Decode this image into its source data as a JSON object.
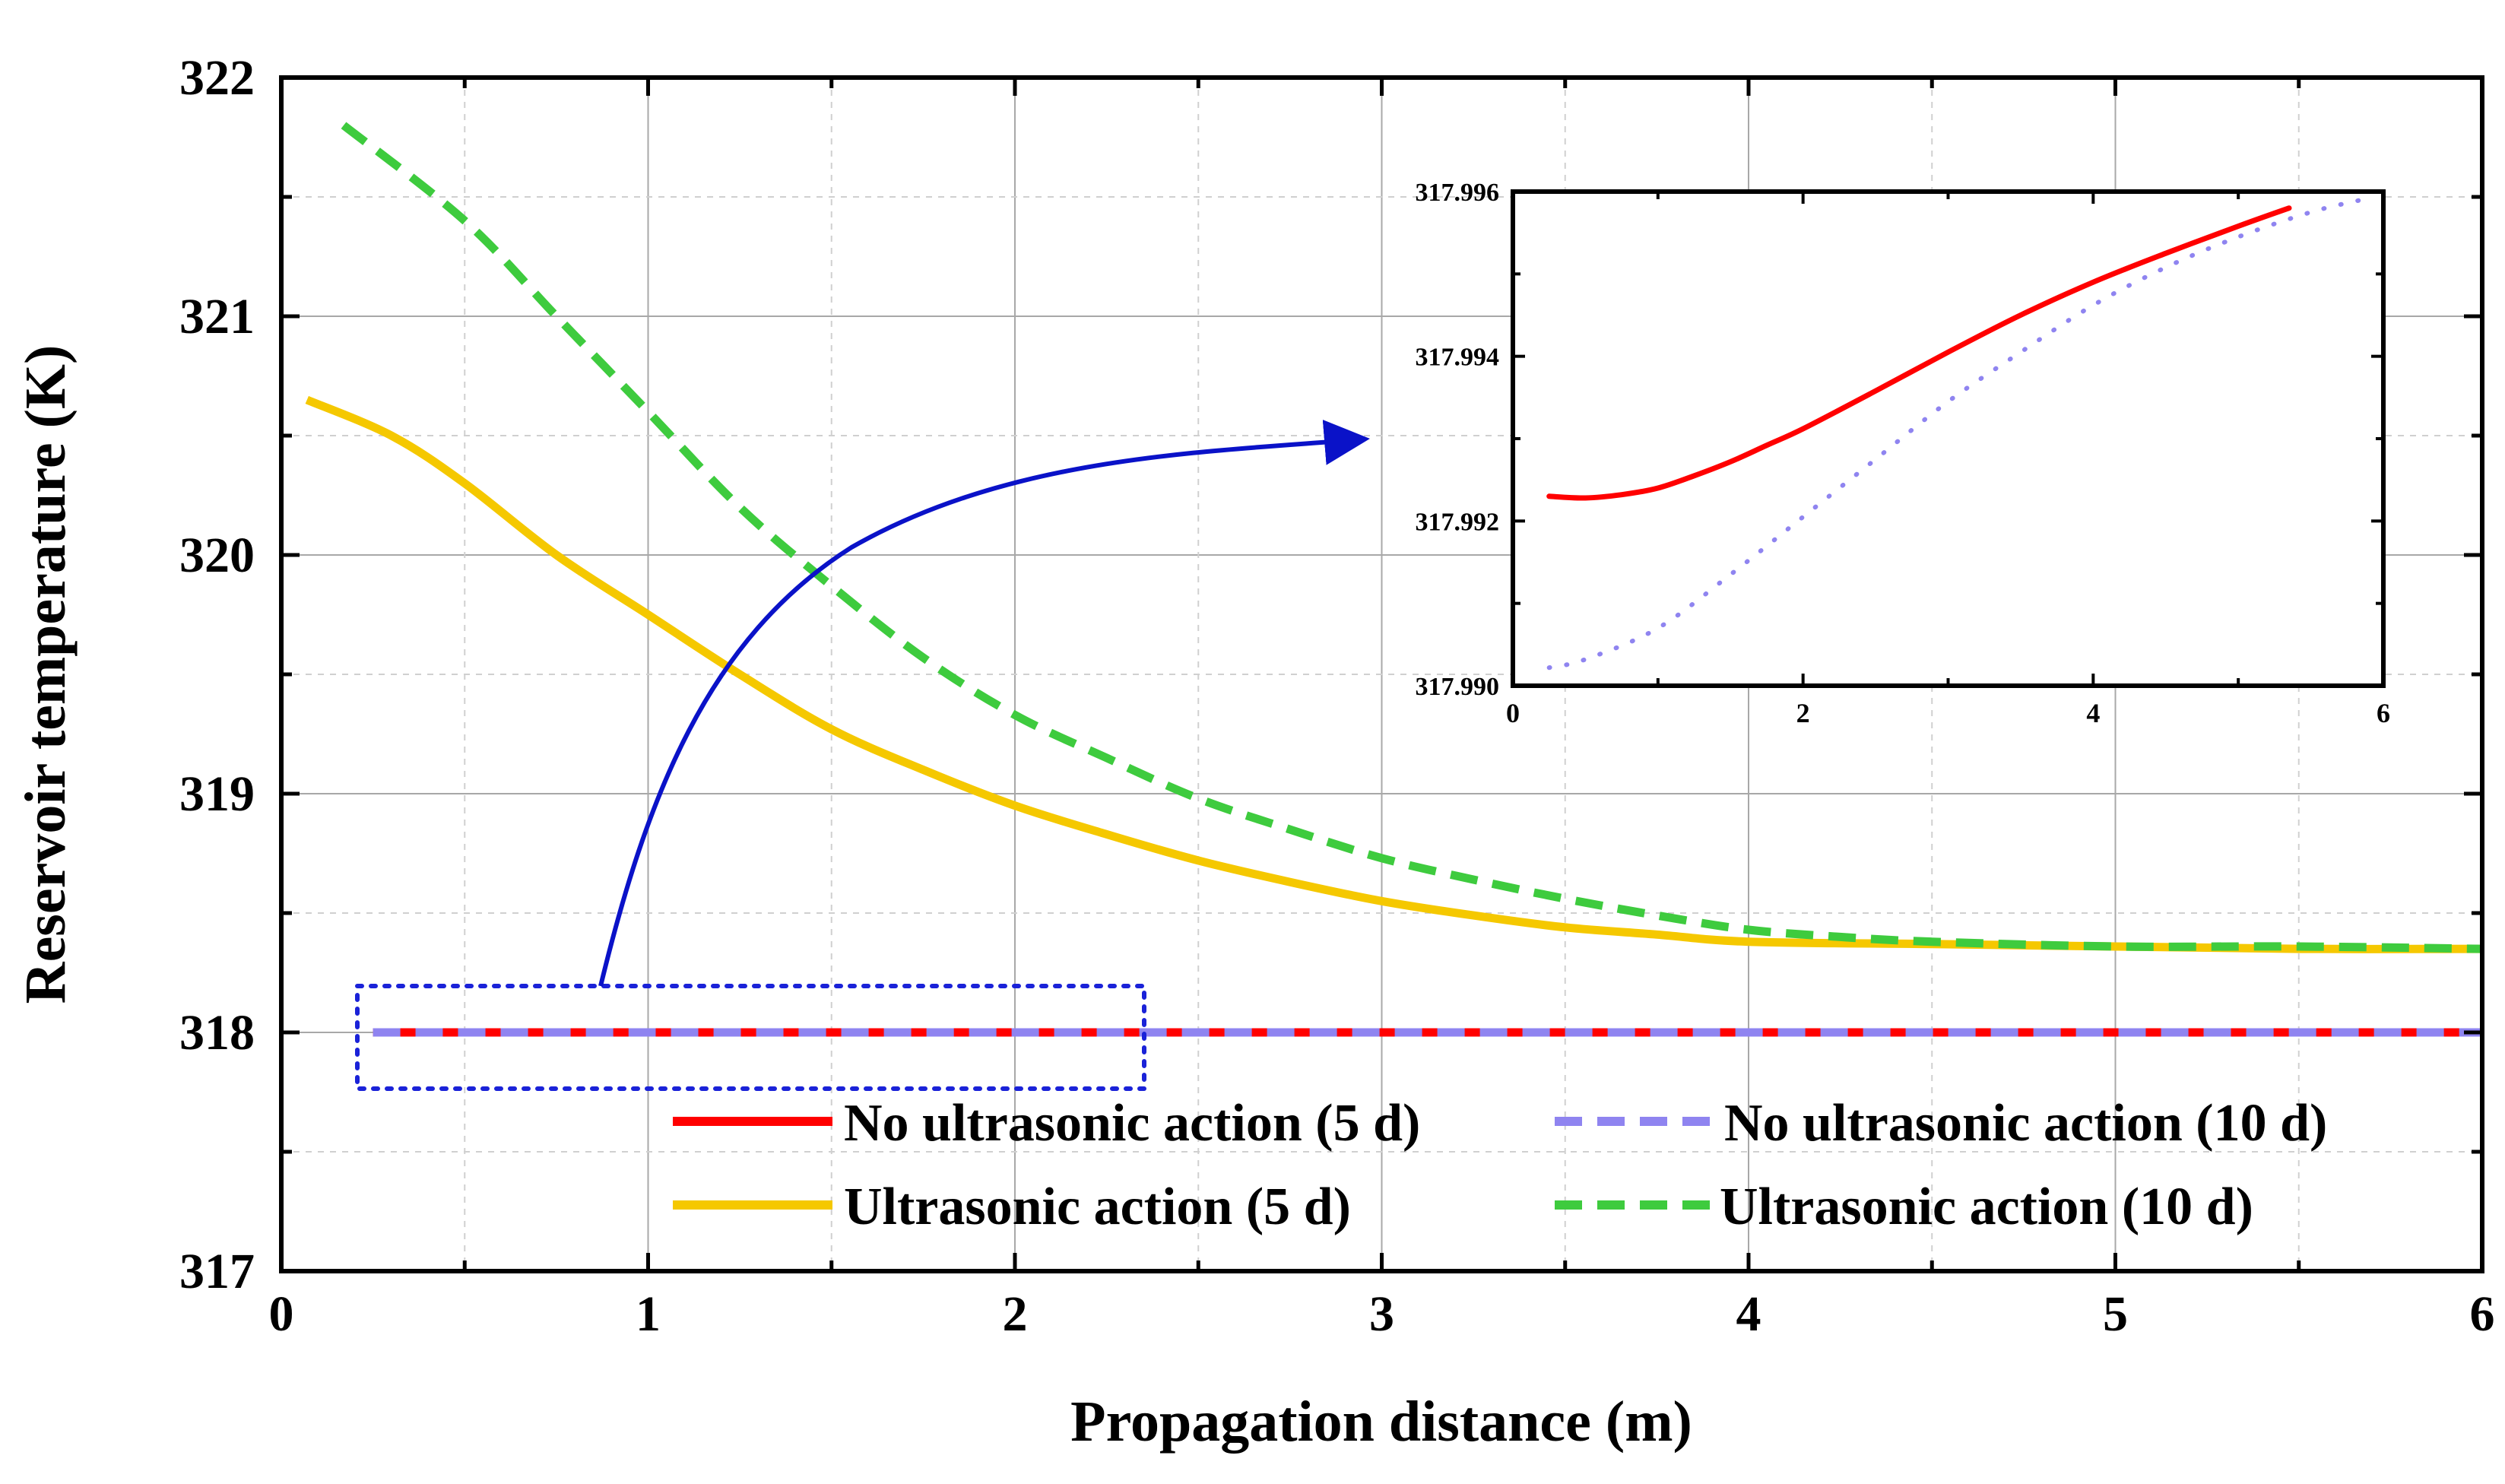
{
  "chart_data": [
    {
      "id": "main",
      "type": "line",
      "title": "",
      "xlabel": "Propagation distance (m)",
      "ylabel": "Reservoir temperature (K)",
      "xlim": [
        0,
        6
      ],
      "ylim": [
        317,
        322
      ],
      "xticks": [
        0,
        1,
        2,
        3,
        4,
        5,
        6
      ],
      "yticks": [
        317,
        318,
        319,
        320,
        321,
        322
      ],
      "grid": true,
      "legend_position": "bottom-right",
      "series": [
        {
          "name": "No ultrasonic action (5 d)",
          "color": "#ff0000",
          "style": "solid",
          "x": [
            0.25,
            1,
            2,
            3,
            4,
            5,
            6
          ],
          "y": [
            318.0,
            318.0,
            318.0,
            318.0,
            318.0,
            318.0,
            318.0
          ]
        },
        {
          "name": "No ultrasonic action (10 d)",
          "color": "#8f84f0",
          "style": "dashed",
          "x": [
            0.25,
            1,
            2,
            3,
            4,
            5,
            6
          ],
          "y": [
            318.0,
            318.0,
            318.0,
            318.0,
            318.0,
            318.0,
            318.0
          ]
        },
        {
          "name": "Ultrasonic action (5 d)",
          "color": "#f5c800",
          "style": "solid",
          "x": [
            0.07,
            0.3,
            0.5,
            0.75,
            1.0,
            1.25,
            1.5,
            1.75,
            2.0,
            2.25,
            2.5,
            2.75,
            3.0,
            3.25,
            3.5,
            3.75,
            4.0,
            4.5,
            5.0,
            5.5,
            6.0
          ],
          "y": [
            320.65,
            320.5,
            320.3,
            320.0,
            319.75,
            319.5,
            319.27,
            319.1,
            318.95,
            318.83,
            318.72,
            318.63,
            318.55,
            318.49,
            318.44,
            318.41,
            318.38,
            318.37,
            318.36,
            318.35,
            318.35
          ]
        },
        {
          "name": "Ultrasonic action (10 d)",
          "color": "#3ecb3e",
          "style": "dashed",
          "x": [
            0.17,
            0.5,
            0.75,
            1.0,
            1.25,
            1.5,
            1.75,
            2.0,
            2.25,
            2.5,
            2.75,
            3.0,
            3.25,
            3.5,
            3.75,
            4.0,
            4.25,
            4.5,
            5.0,
            5.5,
            6.0
          ],
          "y": [
            321.8,
            321.4,
            321.0,
            320.6,
            320.2,
            319.87,
            319.57,
            319.33,
            319.15,
            318.98,
            318.85,
            318.73,
            318.64,
            318.56,
            318.49,
            318.43,
            318.4,
            318.38,
            318.36,
            318.36,
            318.35
          ]
        }
      ]
    },
    {
      "id": "inset",
      "type": "line",
      "title": "",
      "xlabel": "",
      "ylabel": "",
      "xlim": [
        0,
        6
      ],
      "ylim": [
        317.99,
        317.996
      ],
      "xticks": [
        0,
        2,
        4,
        6
      ],
      "ytick_labels": [
        "317.990",
        "317.992",
        "317.994",
        "317.996"
      ],
      "yticks": [
        317.99,
        317.992,
        317.994,
        317.996
      ],
      "grid": false,
      "series": [
        {
          "name": "No ultrasonic action (5 d)",
          "color": "#ff0000",
          "style": "solid",
          "x": [
            0.25,
            0.5,
            0.75,
            1.0,
            1.25,
            1.5,
            1.75,
            2.0,
            2.5,
            3.0,
            3.5,
            4.0,
            4.5,
            5.0,
            5.35
          ],
          "y": [
            317.9923,
            317.99228,
            317.99232,
            317.9924,
            317.99255,
            317.99272,
            317.99292,
            317.99312,
            317.99358,
            317.99405,
            317.9945,
            317.9949,
            317.99525,
            317.99558,
            317.9958
          ]
        },
        {
          "name": "No ultrasonic action (10 d)",
          "color": "#8f84f0",
          "style": "dotted",
          "x": [
            0.25,
            0.5,
            1.0,
            1.5,
            2.0,
            2.5,
            3.0,
            3.5,
            4.0,
            4.5,
            5.0,
            5.5,
            5.85
          ],
          "y": [
            317.99022,
            317.99032,
            317.9907,
            317.99135,
            317.99205,
            317.99275,
            317.99345,
            317.99405,
            317.99462,
            317.99508,
            317.99545,
            317.99575,
            317.9959
          ]
        }
      ]
    }
  ]
}
